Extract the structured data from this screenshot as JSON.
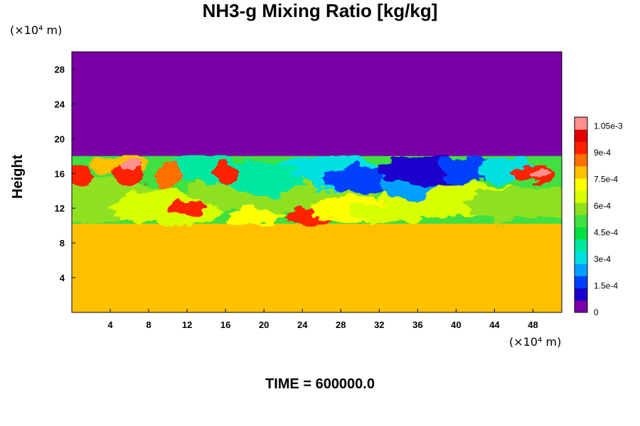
{
  "title": "NH3-g Mixing Ratio [kg/kg]",
  "y_unit": "(×10⁴ m)",
  "x_unit": "(×10⁴ m)",
  "footer": "TIME = 600000.0",
  "chart_data": {
    "type": "heatmap",
    "title": "NH3-g Mixing Ratio [kg/kg]",
    "xlabel": "",
    "ylabel": "Height",
    "x_unit": "×10⁴ m",
    "y_unit": "×10⁴ m",
    "xlim": [
      0,
      51
    ],
    "ylim": [
      0,
      30
    ],
    "x_ticks": [
      4,
      8,
      12,
      16,
      20,
      24,
      28,
      32,
      36,
      40,
      44,
      48
    ],
    "y_ticks": [
      4,
      8,
      12,
      16,
      20,
      24,
      28
    ],
    "colorbar": {
      "min": 0,
      "max": 0.0011,
      "tick_values": [
        0,
        0.00015,
        0.0003,
        0.00045,
        0.0006,
        0.00075,
        0.0009,
        0.00105
      ],
      "tick_labels": [
        "0",
        "1.5e-4",
        "3e-4",
        "4.5e-4",
        "6e-4",
        "7.5e-4",
        "9e-4",
        "1.05e-3"
      ],
      "colors": [
        "#7a00a6",
        "#1a00cc",
        "#0040ff",
        "#00a0ff",
        "#00e0e0",
        "#00e8a0",
        "#00e040",
        "#40e040",
        "#90e020",
        "#d8ff00",
        "#ffff00",
        "#ffc000",
        "#ff7000",
        "#ff2000",
        "#e00000",
        "#ff9090"
      ]
    },
    "layers": [
      {
        "region": "surface to ~10",
        "value": 0.00077
      },
      {
        "region": "~10 to ~18 turbulent layer",
        "value_range": [
          0.0001,
          0.0011
        ]
      },
      {
        "region": "above ~18",
        "value": 0
      }
    ],
    "time": 600000.0
  }
}
